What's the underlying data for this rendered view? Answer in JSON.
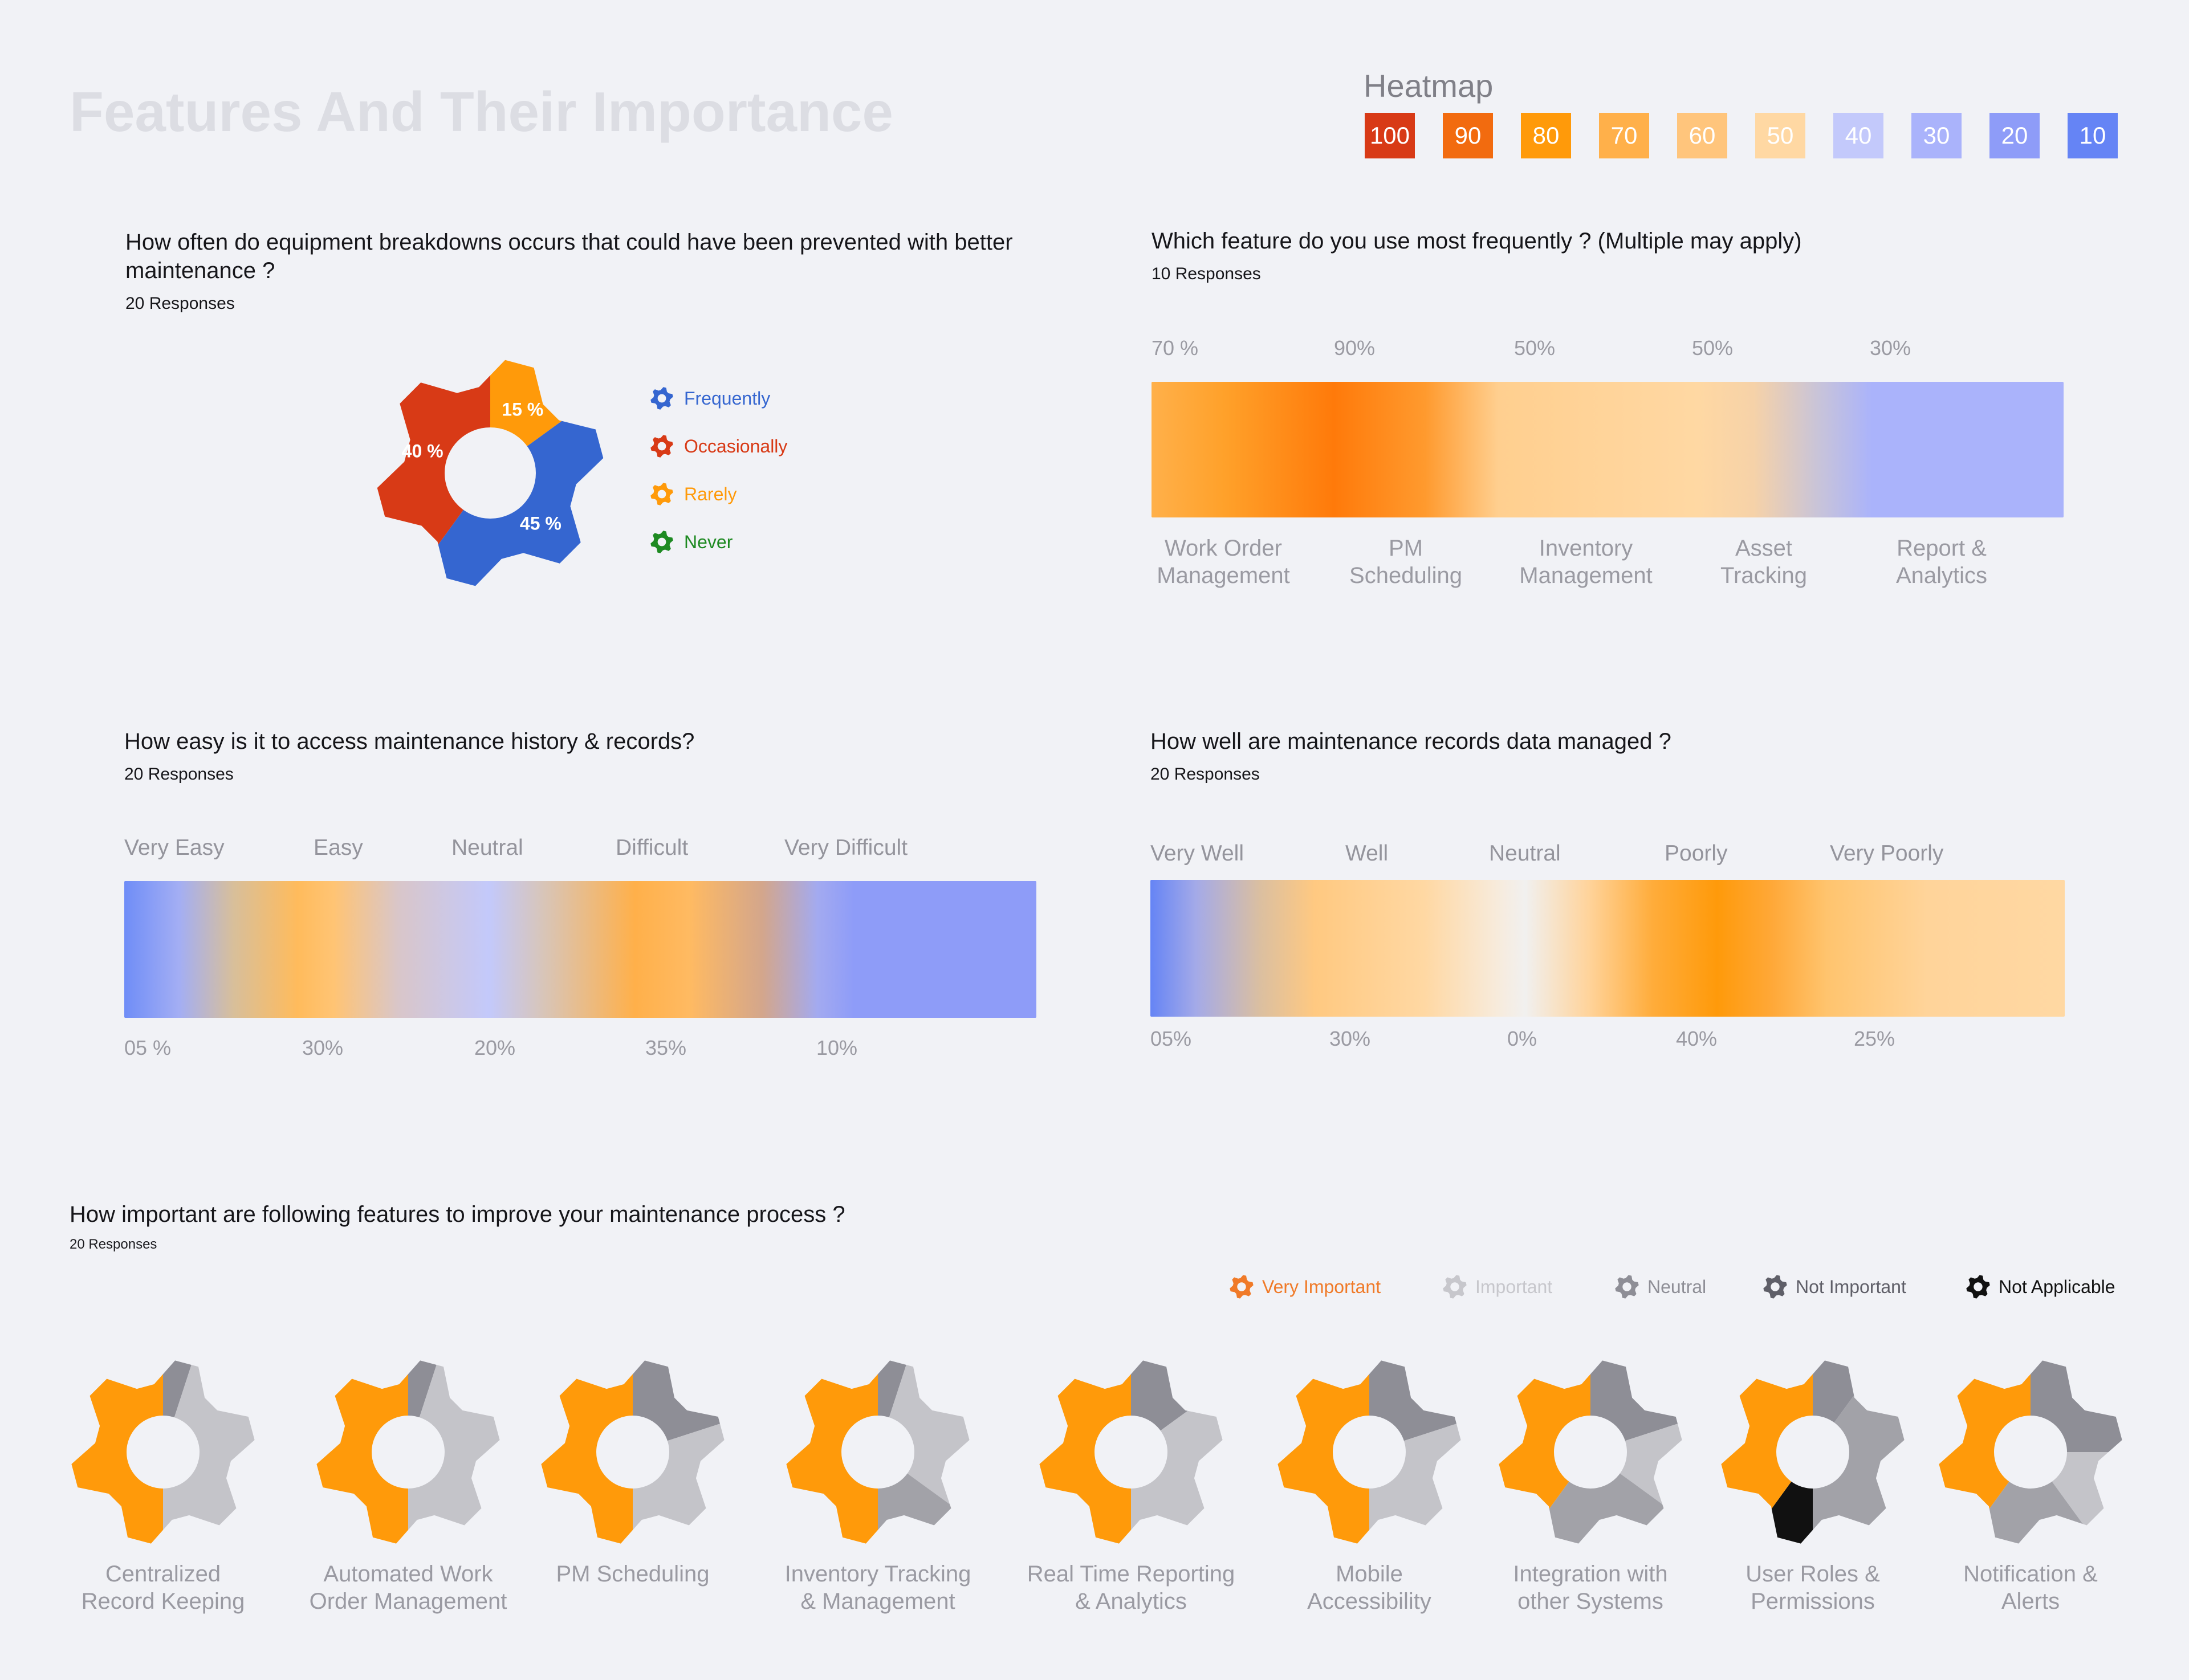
{
  "page": {
    "title": "Features And Their Importance"
  },
  "heatmap": {
    "title": "Heatmap",
    "cells": [
      {
        "label": "100",
        "color": "#d83a16"
      },
      {
        "label": "90",
        "color": "#f26b0f"
      },
      {
        "label": "80",
        "color": "#ff9a0a"
      },
      {
        "label": "70",
        "color": "#ffb04a"
      },
      {
        "label": "60",
        "color": "#ffc57c"
      },
      {
        "label": "50",
        "color": "#ffd8a3"
      },
      {
        "label": "40",
        "color": "#c3c9fb"
      },
      {
        "label": "30",
        "color": "#aab3fb"
      },
      {
        "label": "20",
        "color": "#8e9cf8"
      },
      {
        "label": "10",
        "color": "#6584f5"
      }
    ]
  },
  "q1": {
    "title": "How often do equipment breakdowns occurs that could have been prevented with better maintenance ?",
    "responses": "20 Responses",
    "legend": [
      {
        "label": "Frequently",
        "color": "#3566d0"
      },
      {
        "label": "Occasionally",
        "color": "#d83a16"
      },
      {
        "label": "Rarely",
        "color": "#ff9a0a"
      },
      {
        "label": "Never",
        "color": "#1e8a22"
      }
    ]
  },
  "q2": {
    "title": "Which feature do you use most frequently ? (Multiple may apply)",
    "responses": "10 Responses",
    "values": [
      "70 %",
      "90%",
      "50%",
      "50%",
      "30%"
    ],
    "labels": [
      [
        "Work Order",
        "Management"
      ],
      [
        "PM",
        "Scheduling"
      ],
      [
        "Inventory",
        "Management"
      ],
      [
        "Asset",
        "Tracking"
      ],
      [
        "Report &",
        "Analytics"
      ]
    ]
  },
  "q3": {
    "title": "How easy is it to access maintenance history & records?",
    "responses": "20 Responses",
    "labels": [
      "Very Easy",
      "Easy",
      "Neutral",
      "Difficult",
      "Very Difficult"
    ],
    "values": [
      "05 %",
      "30%",
      "20%",
      "35%",
      "10%"
    ]
  },
  "q4": {
    "title": "How well are maintenance records data managed ?",
    "responses": "20 Responses",
    "labels": [
      "Very Well",
      "Well",
      "Neutral",
      "Poorly",
      "Very Poorly"
    ],
    "values": [
      "05%",
      "30%",
      "0%",
      "40%",
      "25%"
    ]
  },
  "q5": {
    "title": "How important are following features to improve your maintenance process ?",
    "responses": "20 Responses",
    "legend": [
      {
        "label": "Very Important",
        "color": "#f07a28"
      },
      {
        "label": "Important",
        "color": "#c7c7cc"
      },
      {
        "label": "Neutral",
        "color": "#8e8e96"
      },
      {
        "label": "Not Important",
        "color": "#5f5f68"
      },
      {
        "label": "Not Applicable",
        "color": "#111111"
      }
    ],
    "features": [
      [
        "Centralized",
        "Record Keeping"
      ],
      [
        "Automated Work",
        "Order Management"
      ],
      [
        "PM Scheduling",
        ""
      ],
      [
        "Inventory Tracking",
        "& Management"
      ],
      [
        "Real Time Reporting",
        "& Analytics"
      ],
      [
        "Mobile",
        "Accessibility"
      ],
      [
        "Integration with",
        "other Systems"
      ],
      [
        "User Roles &",
        "Permissions"
      ],
      [
        "Notification &",
        "Alerts"
      ]
    ]
  },
  "chart_data": [
    {
      "type": "pie",
      "title": "How often do equipment breakdowns occurs that could have been prevented with better maintenance ?",
      "slices": [
        {
          "label": "Occasionally",
          "value": 40,
          "text": "40 %",
          "color": "#d83a16"
        },
        {
          "label": "Rarely",
          "value": 15,
          "text": "15 %",
          "color": "#ff9a0a"
        },
        {
          "label": "Frequently",
          "value": 45,
          "text": "45 %",
          "color": "#3566d0"
        },
        {
          "label": "Never",
          "value": 0,
          "text": "",
          "color": "#1e8a22"
        }
      ]
    },
    {
      "type": "heatmap",
      "title": "Which feature do you use most frequently ? (Multiple may apply)",
      "categories": [
        "Work Order Management",
        "PM Scheduling",
        "Inventory Management",
        "Asset Tracking",
        "Report & Analytics"
      ],
      "values": [
        70,
        90,
        50,
        50,
        30
      ]
    },
    {
      "type": "heatmap",
      "title": "How easy is it to access maintenance history & records?",
      "categories": [
        "Very Easy",
        "Easy",
        "Neutral",
        "Difficult",
        "Very Difficult"
      ],
      "values": [
        5,
        30,
        20,
        35,
        10
      ]
    },
    {
      "type": "heatmap",
      "title": "How well are maintenance records data managed ?",
      "categories": [
        "Very Well",
        "Well",
        "Neutral",
        "Poorly",
        "Very Poorly"
      ],
      "values": [
        5,
        30,
        0,
        40,
        25
      ]
    },
    {
      "type": "pie",
      "title": "How important are following features to improve your maintenance process ?",
      "series_labels": [
        "Very Important",
        "Important",
        "Neutral",
        "Not Important",
        "Not Applicable"
      ],
      "gears": [
        {
          "feature": "Centralized Record Keeping",
          "values": [
            50,
            5,
            0,
            45,
            0
          ]
        },
        {
          "feature": "Automated Work Order Management",
          "values": [
            50,
            5,
            0,
            45,
            0
          ]
        },
        {
          "feature": "PM Scheduling",
          "values": [
            50,
            20,
            0,
            30,
            0
          ]
        },
        {
          "feature": "Inventory Tracking & Management",
          "values": [
            50,
            5,
            15,
            30,
            0
          ]
        },
        {
          "feature": "Real Time Reporting & Analytics",
          "values": [
            50,
            15,
            0,
            35,
            0
          ]
        },
        {
          "feature": "Mobile Accessibility",
          "values": [
            50,
            20,
            0,
            30,
            0
          ]
        },
        {
          "feature": "Integration with other Systems",
          "values": [
            40,
            20,
            25,
            15,
            0
          ]
        },
        {
          "feature": "User Roles & Permissions",
          "values": [
            40,
            10,
            40,
            0,
            10
          ]
        },
        {
          "feature": "Notification & Alerts",
          "values": [
            40,
            25,
            20,
            15,
            0
          ]
        }
      ]
    }
  ]
}
